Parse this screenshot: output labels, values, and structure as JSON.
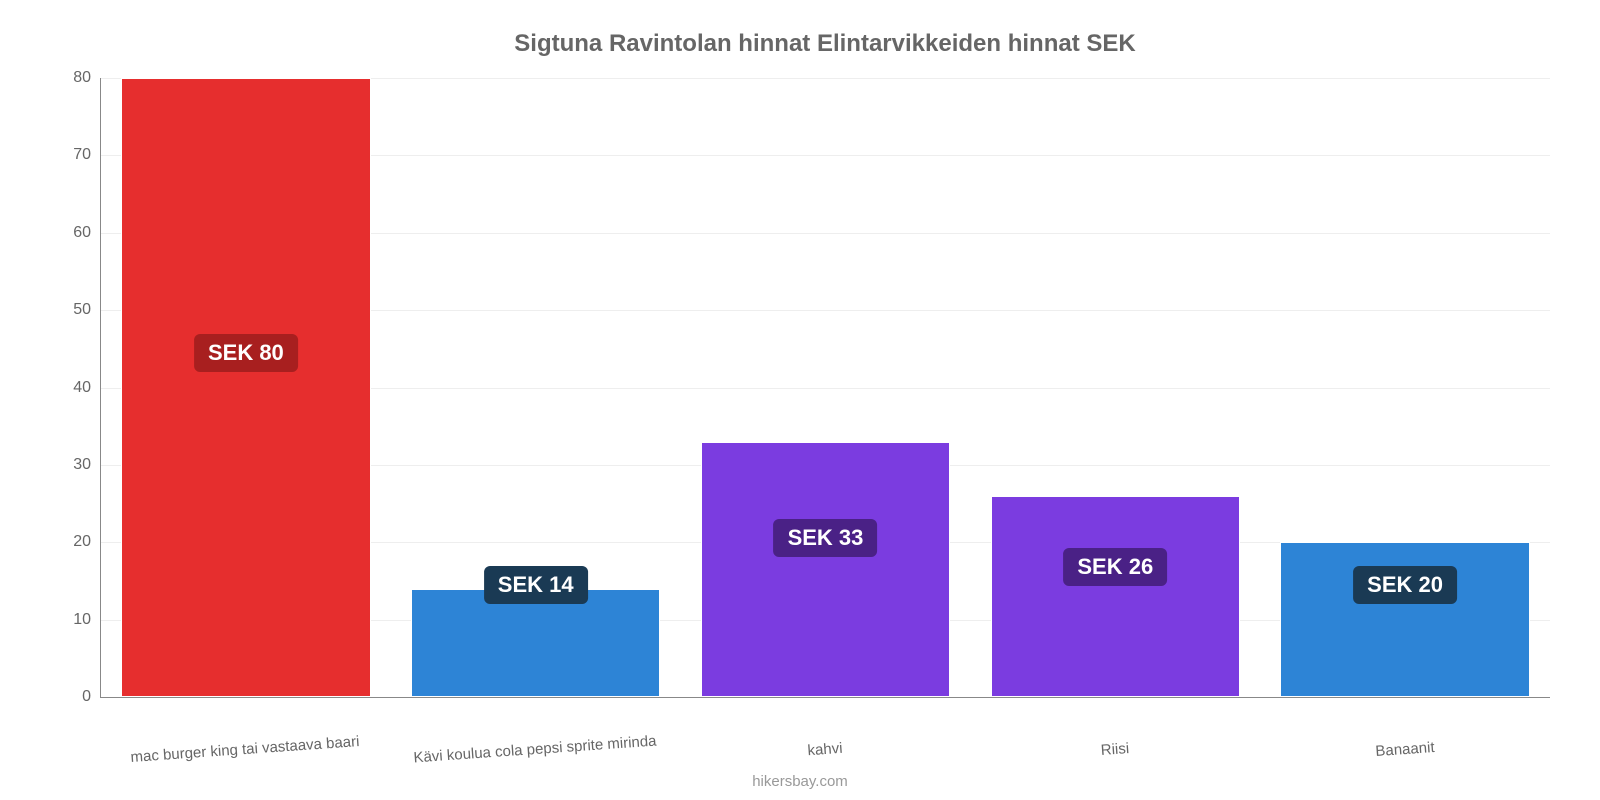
{
  "chart": {
    "type": "bar",
    "title": "Sigtuna Ravintolan hinnat Elintarvikkeiden hinnat SEK",
    "title_color": "#666666",
    "title_fontsize": 24,
    "background_color": "#ffffff",
    "grid_color": "#eeeeee",
    "axis_color": "#888888",
    "ylim": [
      0,
      80
    ],
    "ytick_step": 10,
    "yticks": [
      0,
      10,
      20,
      30,
      40,
      50,
      60,
      70,
      80
    ],
    "label_fontsize": 16,
    "label_color": "#666666",
    "bar_width": 0.86,
    "categories": [
      "mac burger king tai vastaava baari",
      "Kävi koulua cola pepsi sprite mirinda",
      "kahvi",
      "Riisi",
      "Banaanit"
    ],
    "values": [
      80,
      14,
      33,
      26,
      20
    ],
    "value_labels": [
      "SEK 80",
      "SEK 14",
      "SEK 33",
      "SEK 26",
      "SEK 20"
    ],
    "bar_colors": [
      "#e62e2e",
      "#2d84d6",
      "#7b3ce0",
      "#7b3ce0",
      "#2d84d6"
    ],
    "badge_colors": [
      "#a81f1f",
      "#1a3a54",
      "#4a2186",
      "#4a2186",
      "#1a3a54"
    ],
    "badge_text_color": "#ffffff",
    "badge_fontsize": 22
  },
  "attribution": "hikersbay.com"
}
